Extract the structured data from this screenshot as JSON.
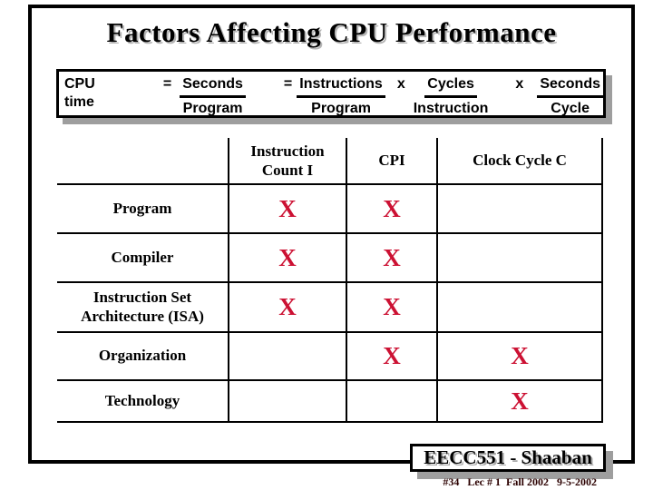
{
  "slide": {
    "title": "Factors Affecting CPU Performance"
  },
  "equation": {
    "lhs": "CPU time",
    "eq1": "=",
    "frac1": {
      "num": "Seconds",
      "den": "Program"
    },
    "eq2": "=",
    "frac2": {
      "num": "Instructions",
      "den": "Program"
    },
    "times1": "x",
    "frac3": {
      "num": "Cycles",
      "den": "Instruction"
    },
    "times2": "x",
    "frac4": {
      "num": "Seconds",
      "den": "Cycle"
    }
  },
  "table": {
    "columns": [
      "Instruction Count I",
      "CPI",
      "Clock Cycle C"
    ],
    "rows": [
      {
        "label": "Program",
        "cells": [
          "X",
          "X",
          ""
        ]
      },
      {
        "label": "Compiler",
        "cells": [
          "X",
          "X",
          ""
        ]
      },
      {
        "label": "Instruction Set Architecture (ISA)",
        "cells": [
          "X",
          "X",
          ""
        ]
      },
      {
        "label": "Organization",
        "cells": [
          "",
          "X",
          "X"
        ]
      },
      {
        "label": "Technology",
        "cells": [
          "",
          "",
          "X"
        ]
      }
    ],
    "x_mark_color": "#cc1133"
  },
  "footer": {
    "course": "EECC551 - Shaaban",
    "lecture_info": "#34   Lec # 1  Fall 2002   9-5-2002"
  }
}
